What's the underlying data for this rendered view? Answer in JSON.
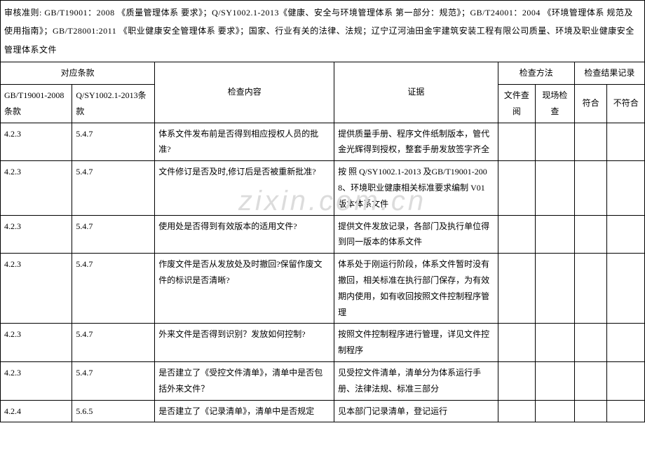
{
  "header_text": "审核准则: GB/T19001：2008 《质量管理体系 要求》；Q/SY1002.1-2013《健康、安全与环境管理体系 第一部分：规范》；GB/T24001：2004 《环境管理体系 规范及使用指南》；GB/T28001:2011 《职业健康安全管理体系 要求》；国家、行业有关的法律、法规；辽宁辽河油田金宇建筑安装工程有限公司质量、环境及职业健康安全管理体系文件",
  "cols": {
    "group1": "对应条款",
    "gb1": "GB/T19001-2008条款",
    "gb2": "Q/SY1002.1-2013条款",
    "content": "检查内容",
    "evidence": "证据",
    "method_group": "检查方法",
    "method1": "文件查阅",
    "method2": "现场检查",
    "result_group": "检查结果记录",
    "result1": "符合",
    "result2": "不符合"
  },
  "rows": [
    {
      "gb1": "4.2.3",
      "gb2": "5.4.7",
      "content": "体系文件发布前是否得到相应授权人员的批准?",
      "evidence": "提供质量手册、程序文件纸制版本，管代金光辉得到授权，整套手册发放签字齐全"
    },
    {
      "gb1": "4.2.3",
      "gb2": "5.4.7",
      "content": "文件修订是否及时,修订后是否被重新批准?",
      "evidence": "按 照 Q/SY1002.1-2013  及GB/T19001-2008、环境职业健康相关标准要求编制 V01 版本体系文件"
    },
    {
      "gb1": "4.2.3",
      "gb2": "5.4.7",
      "content": "使用处是否得到有效版本的适用文件?",
      "evidence": "提供文件发放记录，各部门及执行单位得到同一版本的体系文件"
    },
    {
      "gb1": "4.2.3",
      "gb2": "5.4.7",
      "content": "作废文件是否从发放处及时撤回?保留作废文件的标识是否清晰?",
      "evidence": "体系处于刚运行阶段，体系文件暂时没有撤回，相关标准在执行部门保存，为有效期内使用，如有收回按照文件控制程序管理"
    },
    {
      "gb1": "4.2.3",
      "gb2": "5.4.7",
      "content": "外来文件是否得到识别？发放如何控制?",
      "evidence": "按照文件控制程序进行管理，详见文件控制程序"
    },
    {
      "gb1": "4.2.3",
      "gb2": "5.4.7",
      "content": "是否建立了《受控文件清单》，清单中是否包括外来文件？",
      "evidence": "见受控文件清单，清单分为体系运行手册、法律法规、标准三部分"
    },
    {
      "gb1": "4.2.4",
      "gb2": "5.6.5",
      "content": "是否建立了《记录清单》，清单中是否规定",
      "evidence": "见本部门记录清单，登记运行"
    }
  ],
  "watermark": "zixin.com.cn"
}
